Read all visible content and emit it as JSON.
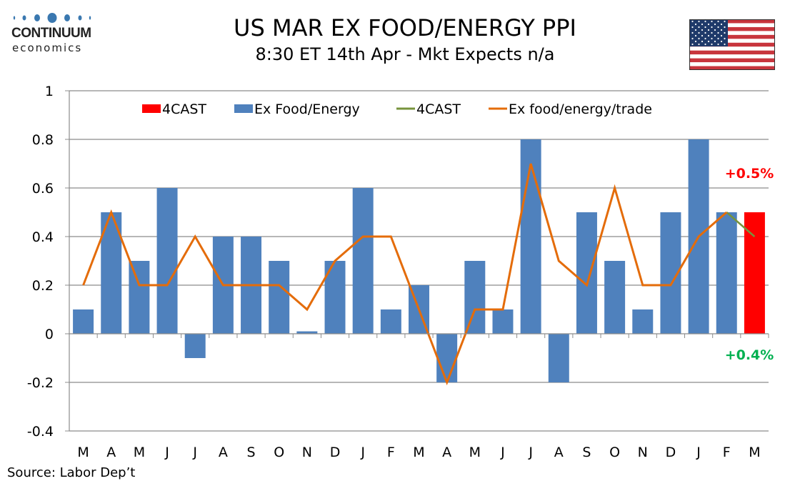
{
  "header": {
    "logo_line1": "CONTINUUM",
    "logo_line2": "economics",
    "title": "US MAR EX FOOD/ENERGY PPI",
    "subtitle": "8:30 ET 14th Apr - Mkt Expects n/a",
    "flag_icon": "us-flag-icon"
  },
  "footer": {
    "source": "Source: Labor Dep’t"
  },
  "colors": {
    "bar": "#4f81bd",
    "forecast_bar": "#ff0000",
    "forecast_line": "#77933c",
    "trade_line": "#e46c0a",
    "annotation_up": "#ff0000",
    "annotation_down": "#00b050",
    "logo_blue": "#3a78b0"
  },
  "chart_data": {
    "type": "bar",
    "title": "US MAR EX FOOD/ENERGY PPI",
    "subtitle": "8:30 ET 14th Apr - Mkt Expects n/a",
    "xlabel": "",
    "ylabel": "",
    "ylim": [
      -0.4,
      1
    ],
    "yticks": [
      1,
      0.8,
      0.6,
      0.4,
      0.2,
      0,
      -0.2,
      -0.4
    ],
    "ytick_labels": [
      "1",
      "0.8",
      "0.6",
      "0.4",
      "0.2",
      "0",
      "-0.2",
      "-0.4"
    ],
    "grid": true,
    "legend_position": "top",
    "categories": [
      "M",
      "A",
      "M",
      "J",
      "J",
      "A",
      "S",
      "O",
      "N",
      "D",
      "J",
      "F",
      "M",
      "A",
      "M",
      "J",
      "J",
      "A",
      "S",
      "O",
      "N",
      "D",
      "J",
      "F",
      "M"
    ],
    "series": [
      {
        "name": "4CAST",
        "kind": "bar",
        "values": [
          null,
          null,
          null,
          null,
          null,
          null,
          null,
          null,
          null,
          null,
          null,
          null,
          null,
          null,
          null,
          null,
          null,
          null,
          null,
          null,
          null,
          null,
          null,
          null,
          0.5
        ]
      },
      {
        "name": "Ex Food/Energy",
        "kind": "bar",
        "values": [
          0.1,
          0.5,
          0.3,
          0.6,
          -0.1,
          0.4,
          0.4,
          0.3,
          0.01,
          0.3,
          0.6,
          0.1,
          0.2,
          -0.2,
          0.3,
          0.1,
          0.8,
          -0.2,
          0.5,
          0.3,
          0.1,
          0.5,
          0.8,
          0.5,
          null
        ]
      },
      {
        "name": "4CAST",
        "kind": "line",
        "values": [
          null,
          null,
          null,
          null,
          null,
          null,
          null,
          null,
          null,
          null,
          null,
          null,
          null,
          null,
          null,
          null,
          null,
          null,
          null,
          null,
          null,
          null,
          null,
          0.5,
          0.4
        ]
      },
      {
        "name": "Ex food/energy/trade",
        "kind": "line",
        "values": [
          0.2,
          0.5,
          0.2,
          0.2,
          0.4,
          0.2,
          0.2,
          0.2,
          0.1,
          0.3,
          0.4,
          0.4,
          0.1,
          -0.2,
          0.1,
          0.1,
          0.7,
          0.3,
          0.2,
          0.6,
          0.2,
          0.2,
          0.4,
          0.5,
          null
        ]
      }
    ],
    "annotations": [
      {
        "text": "+0.5%",
        "refers_to": "4CAST bar",
        "color": "#ff0000"
      },
      {
        "text": "+0.4%",
        "refers_to": "4CAST line",
        "color": "#00b050"
      }
    ]
  }
}
